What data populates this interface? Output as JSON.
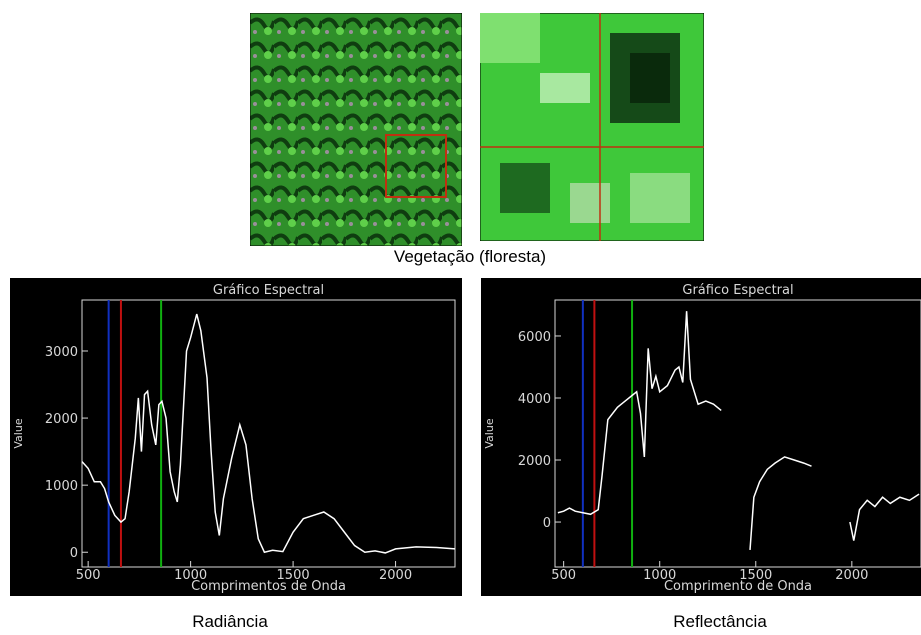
{
  "caption": "Vegetação (floresta)",
  "chart_data": [
    {
      "type": "line",
      "title": "Gráfico Espectral",
      "xlabel": "Comprimentos de Onda",
      "ylabel": "Value",
      "caption": "Radiância",
      "xlim": [
        470,
        2290
      ],
      "ylim": [
        -220,
        3760
      ],
      "xticks": [
        500,
        1000,
        1500,
        2000
      ],
      "yticks": [
        0,
        1000,
        2000,
        3000
      ],
      "band_lines": [
        600,
        660,
        856
      ],
      "band_colors": [
        "#1030c0",
        "#c01010",
        "#10b010"
      ],
      "series": [
        {
          "color": "#ffffff",
          "x": [
            470,
            500,
            530,
            560,
            580,
            600,
            630,
            660,
            680,
            700,
            730,
            745,
            760,
            775,
            790,
            810,
            830,
            845,
            860,
            880,
            900,
            920,
            935,
            950,
            980,
            1000,
            1030,
            1050,
            1080,
            1100,
            1120,
            1140,
            1160,
            1200,
            1240,
            1270,
            1300,
            1330,
            1360,
            1400,
            1450,
            1500,
            1550,
            1600,
            1650,
            1700,
            1750,
            1800,
            1850,
            1900,
            1950,
            2000,
            2100,
            2200,
            2290
          ],
          "values": [
            1350,
            1250,
            1050,
            1050,
            950,
            750,
            550,
            450,
            500,
            900,
            1700,
            2300,
            1500,
            2350,
            2400,
            1900,
            1600,
            2200,
            2250,
            2000,
            1200,
            900,
            750,
            1300,
            3000,
            3200,
            3550,
            3300,
            2600,
            1500,
            600,
            250,
            800,
            1400,
            1900,
            1600,
            800,
            200,
            0,
            30,
            10,
            300,
            500,
            550,
            600,
            500,
            300,
            100,
            0,
            20,
            -10,
            50,
            80,
            70,
            50
          ]
        }
      ]
    },
    {
      "type": "line",
      "title": "Gráfico Espectral",
      "xlabel": "Comprimento de Onda",
      "ylabel": "Value",
      "caption": "Reflectância",
      "xlim": [
        455,
        2360
      ],
      "ylim": [
        -1450,
        7160
      ],
      "xticks": [
        500,
        1000,
        1500,
        2000
      ],
      "yticks": [
        0,
        2000,
        4000,
        6000
      ],
      "band_lines": [
        600,
        660,
        856
      ],
      "band_colors": [
        "#1030c0",
        "#c01010",
        "#10b010"
      ],
      "series": [
        {
          "color": "#ffffff",
          "x": [
            470,
            500,
            530,
            560,
            600,
            640,
            680,
            700,
            730,
            780,
            820,
            860,
            880,
            900,
            920,
            940,
            960,
            980,
            1000,
            1040,
            1080,
            1100,
            1120,
            1140,
            1160,
            1200,
            1240,
            1280,
            1320,
            1400,
            1470,
            1490,
            1520,
            1560,
            1600,
            1650,
            1700,
            1750,
            1790,
            1900,
            1990,
            2010,
            2040,
            2080,
            2120,
            2160,
            2200,
            2250,
            2300,
            2350
          ],
          "values": [
            300,
            350,
            450,
            350,
            300,
            250,
            400,
            1500,
            3300,
            3700,
            3900,
            4100,
            4200,
            3500,
            2100,
            5600,
            4300,
            4700,
            4200,
            4400,
            4900,
            5000,
            4500,
            6800,
            4600,
            3800,
            3900,
            3800,
            3600,
            null,
            -900,
            800,
            1300,
            1700,
            1900,
            2100,
            2000,
            1900,
            1800,
            null,
            0,
            -600,
            400,
            700,
            500,
            800,
            600,
            800,
            700,
            900
          ]
        }
      ]
    }
  ]
}
